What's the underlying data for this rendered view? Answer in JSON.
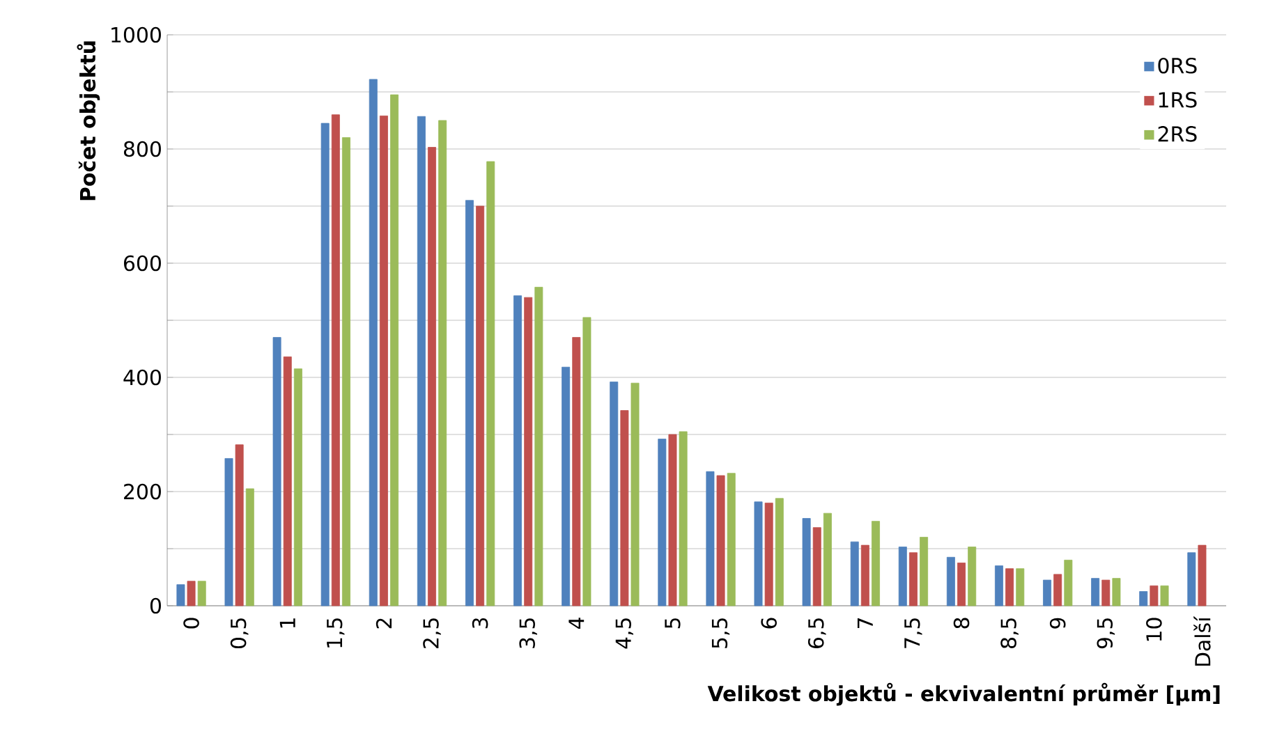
{
  "chart_data": {
    "type": "bar",
    "xlabel": "Velikost objektů - ekvivalentní průměr [µm]",
    "ylabel": "Počet objektů",
    "categories": [
      "0",
      "0,5",
      "1",
      "1,5",
      "2",
      "2,5",
      "3",
      "3,5",
      "4",
      "4,5",
      "5",
      "5,5",
      "6",
      "6,5",
      "7",
      "7,5",
      "8",
      "8,5",
      "9",
      "9,5",
      "10",
      "Další"
    ],
    "series": [
      {
        "name": "0RS",
        "color": "#4f81bd",
        "values": [
          37,
          258,
          470,
          845,
          922,
          857,
          710,
          543,
          418,
          392,
          292,
          235,
          182,
          153,
          112,
          103,
          85,
          70,
          45,
          48,
          25,
          93
        ]
      },
      {
        "name": "1RS",
        "color": "#c0504d",
        "values": [
          43,
          282,
          436,
          860,
          858,
          803,
          700,
          540,
          470,
          342,
          300,
          228,
          180,
          137,
          106,
          93,
          75,
          65,
          55,
          45,
          35,
          106
        ]
      },
      {
        "name": "2RS",
        "color": "#9bbb59",
        "values": [
          43,
          205,
          415,
          820,
          895,
          850,
          778,
          558,
          505,
          390,
          305,
          232,
          188,
          162,
          148,
          120,
          103,
          65,
          80,
          48,
          35,
          null
        ]
      }
    ],
    "ylim": [
      0,
      1000
    ],
    "yticks": [
      0,
      {
        "value": 100,
        "label": null
      },
      200,
      {
        "value": 300,
        "label": null
      },
      400,
      {
        "value": 500,
        "label": null
      },
      600,
      {
        "value": 700,
        "label": null
      },
      800,
      {
        "value": 900,
        "label": null
      },
      1000
    ],
    "grid": "y",
    "legend": "top right"
  }
}
